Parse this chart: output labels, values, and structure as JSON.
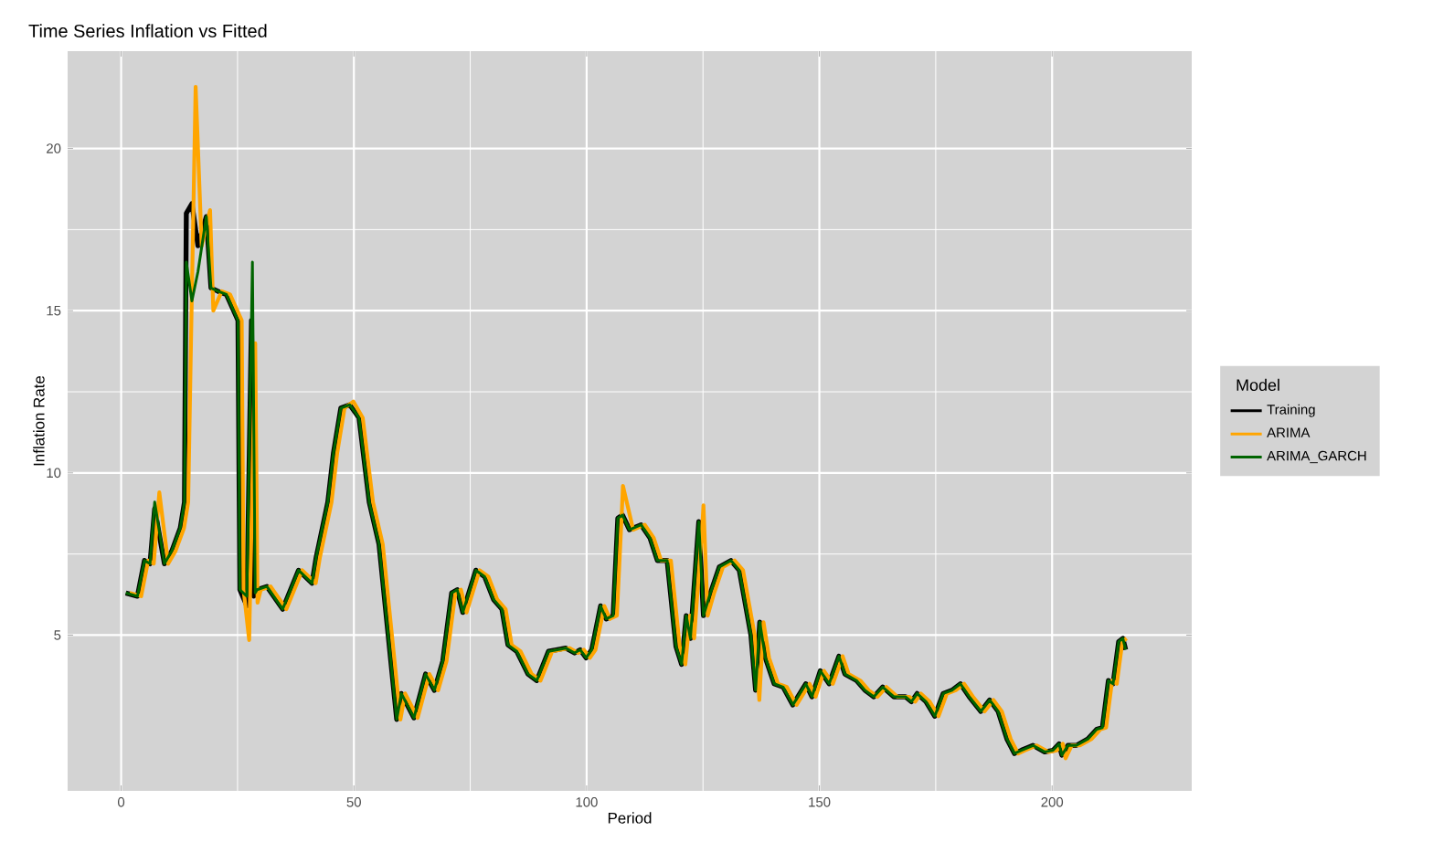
{
  "chart_data": {
    "type": "line",
    "title": "Time Series Inflation vs Fitted",
    "xlabel": "Period",
    "ylabel": "Inflation Rate",
    "legend_title": "Model",
    "legend": "right",
    "grid": true,
    "line_style": "solid",
    "xlim": [
      -11.5,
      230
    ],
    "ylim": [
      0.2,
      23
    ],
    "xticks": [
      0,
      50,
      100,
      150,
      200
    ],
    "yticks": [
      5,
      10,
      15,
      20
    ],
    "series": [
      {
        "name": "Training",
        "color": "#000000",
        "x": [
          1,
          3.5,
          5,
          6.2,
          7.2,
          9.3,
          10.9,
          12.7,
          13.6,
          14,
          15.2,
          16.5,
          18.3,
          19.3,
          20.8,
          22.6,
          25.1,
          25.5,
          27,
          28,
          28.5,
          29.2,
          31.3,
          34.7,
          38.1,
          41,
          41.9,
          44.4,
          45.6,
          47.2,
          49.1,
          51.1,
          53.3,
          55.4,
          59.2,
          60.2,
          62.9,
          65.4,
          67.3,
          69.1,
          71,
          72.2,
          73.4,
          76.2,
          78.1,
          80,
          81.8,
          83.1,
          85,
          87.4,
          89.3,
          91.8,
          93.7,
          95.5,
          97.4,
          98.6,
          99.9,
          101.1,
          103,
          104.2,
          105.7,
          106.7,
          107.7,
          109.2,
          111.7,
          113.6,
          115.2,
          117.3,
          119.2,
          120.4,
          121.4,
          122.3,
          124.1,
          125.1,
          126.6,
          128.5,
          131,
          132.8,
          135.3,
          136.3,
          137.2,
          138.4,
          140.3,
          142.2,
          144.3,
          147.1,
          148.4,
          150.2,
          152.1,
          154.2,
          155.5,
          158,
          159.8,
          161.7,
          163.6,
          166,
          168.5,
          169.8,
          171,
          172.9,
          174.8,
          176.6,
          178.5,
          180.3,
          182.2,
          184.7,
          186.6,
          188.4,
          190.3,
          191.9,
          193.4,
          195.9,
          198.4,
          200.2,
          201.5,
          202.1,
          203.4,
          205.2,
          207.7,
          209.6,
          210.8,
          212.1,
          213.1,
          214.3,
          215.2,
          215.8
        ],
        "values": [
          6.3,
          6.2,
          7.3,
          7.2,
          8.9,
          7.2,
          7.6,
          8.3,
          9.1,
          18.0,
          18.3,
          17.0,
          17.9,
          15.7,
          15.6,
          15.5,
          14.7,
          6.4,
          5.9,
          14.7,
          6.2,
          6.4,
          6.5,
          5.8,
          7.0,
          6.6,
          7.4,
          9.1,
          10.6,
          12.0,
          12.1,
          11.7,
          9.1,
          7.8,
          2.4,
          3.2,
          2.45,
          3.8,
          3.3,
          4.2,
          6.3,
          6.4,
          5.7,
          7.0,
          6.8,
          6.1,
          5.8,
          4.7,
          4.5,
          3.8,
          3.6,
          4.5,
          4.55,
          4.6,
          4.45,
          4.55,
          4.3,
          4.55,
          5.9,
          5.5,
          5.6,
          8.6,
          8.7,
          8.25,
          8.4,
          8.0,
          7.3,
          7.3,
          4.65,
          4.1,
          5.6,
          4.9,
          8.5,
          5.6,
          6.3,
          7.1,
          7.3,
          7.0,
          5.0,
          3.3,
          5.4,
          4.3,
          3.5,
          3.4,
          2.85,
          3.5,
          3.1,
          3.9,
          3.5,
          4.35,
          3.8,
          3.6,
          3.3,
          3.1,
          3.4,
          3.1,
          3.1,
          2.95,
          3.2,
          2.95,
          2.5,
          3.2,
          3.3,
          3.5,
          3.1,
          2.65,
          3.0,
          2.65,
          1.8,
          1.35,
          1.45,
          1.6,
          1.4,
          1.45,
          1.65,
          1.3,
          1.6,
          1.6,
          1.8,
          2.1,
          2.15,
          3.6,
          3.5,
          4.8,
          4.9,
          4.55
        ]
      },
      {
        "name": "ARIMA",
        "color": "#ffa500",
        "x": [
          1.8,
          4.3,
          5.8,
          7,
          8.2,
          10.1,
          11.7,
          13.5,
          14.4,
          15,
          16,
          17.3,
          19.1,
          19.8,
          21.6,
          23.4,
          25.9,
          26.3,
          27.5,
          28.8,
          29.3,
          30,
          32.1,
          35.5,
          38.9,
          41.8,
          42.7,
          45.2,
          46.4,
          48,
          49.9,
          51.9,
          54.1,
          56.2,
          60,
          61,
          63.7,
          66.2,
          68.1,
          69.9,
          71.8,
          73,
          74.2,
          77,
          78.9,
          80.8,
          82.6,
          83.9,
          85.8,
          88.2,
          90.1,
          92.6,
          94.5,
          96.3,
          98.2,
          99.4,
          100.7,
          101.9,
          103.8,
          105,
          106.5,
          107.5,
          107.8,
          110,
          112.5,
          114.4,
          116,
          118.1,
          120,
          121.2,
          122.2,
          123.1,
          124.9,
          125.1,
          126,
          127.4,
          129.3,
          131.8,
          133.6,
          136.1,
          137.1,
          138,
          139.2,
          141.1,
          143,
          145.1,
          147.9,
          149.2,
          151,
          152.9,
          155,
          156.3,
          158.8,
          160.6,
          162.5,
          164.4,
          166.8,
          169.3,
          170.6,
          171.8,
          173.7,
          175.6,
          177.4,
          179.3,
          181.1,
          183,
          185.5,
          187.4,
          189.2,
          191.1,
          192.7,
          194.2,
          196.7,
          199.2,
          201,
          202.3,
          202.9,
          204.2,
          206,
          208.5,
          210.4,
          211.6,
          212.9,
          213.9,
          215.1,
          216
        ],
        "values": [
          6.3,
          6.2,
          7.3,
          7.2,
          9.4,
          7.2,
          7.6,
          8.3,
          9.1,
          14.0,
          21.9,
          17.0,
          18.1,
          15.0,
          15.6,
          15.5,
          14.7,
          6.4,
          4.85,
          14.0,
          6.0,
          6.4,
          6.5,
          5.8,
          7.0,
          6.6,
          7.4,
          9.1,
          10.6,
          12.0,
          12.2,
          11.7,
          9.1,
          7.8,
          2.4,
          3.2,
          2.45,
          3.8,
          3.3,
          4.2,
          6.3,
          6.4,
          5.7,
          7.0,
          6.8,
          6.1,
          5.8,
          4.7,
          4.5,
          3.8,
          3.6,
          4.5,
          4.55,
          4.6,
          4.45,
          4.55,
          4.3,
          4.55,
          5.9,
          5.5,
          5.6,
          8.6,
          9.6,
          8.25,
          8.4,
          8.0,
          7.3,
          7.3,
          4.65,
          4.1,
          5.6,
          4.9,
          8.5,
          9.0,
          5.6,
          6.3,
          7.1,
          7.3,
          7.0,
          5.0,
          3.0,
          5.4,
          4.3,
          3.5,
          3.4,
          2.85,
          3.5,
          3.1,
          3.9,
          3.5,
          4.35,
          3.8,
          3.6,
          3.3,
          3.1,
          3.4,
          3.1,
          3.1,
          2.95,
          3.2,
          2.95,
          2.5,
          3.2,
          3.3,
          3.5,
          3.1,
          2.65,
          3.0,
          2.65,
          1.8,
          1.35,
          1.45,
          1.6,
          1.4,
          1.45,
          1.65,
          1.2,
          1.6,
          1.6,
          1.8,
          2.1,
          2.15,
          3.6,
          3.5,
          4.8,
          4.9
        ]
      },
      {
        "name": "ARIMA_GARCH",
        "color": "#006400",
        "x": [
          1,
          3.5,
          5,
          6.2,
          7.2,
          9.3,
          10.9,
          12.7,
          13.6,
          14,
          15.2,
          16.5,
          18.3,
          19.3,
          20.8,
          22.6,
          25.1,
          25.5,
          27,
          28.2,
          28.8,
          29.2,
          31.3,
          34.7,
          38.1,
          41,
          41.9,
          44.4,
          45.6,
          47.2,
          49.1,
          51.1,
          53.3,
          55.4,
          59.2,
          60.2,
          62.9,
          65.4,
          67.3,
          69.1,
          71,
          72.2,
          73.4,
          76.2,
          78.1,
          80,
          81.8,
          83.1,
          85,
          87.4,
          89.3,
          91.8,
          93.7,
          95.5,
          97.4,
          98.6,
          99.9,
          101.1,
          103,
          104.2,
          105.7,
          106.7,
          107.7,
          109.2,
          111.7,
          113.6,
          115.2,
          117.3,
          119.2,
          120.4,
          121.4,
          122.3,
          124.1,
          125.1,
          126.6,
          128.5,
          131,
          132.8,
          135.3,
          136.3,
          137.2,
          138.4,
          140.3,
          142.2,
          144.3,
          147.1,
          148.4,
          150.2,
          152.1,
          154.2,
          155.5,
          158,
          159.8,
          161.7,
          163.6,
          166,
          168.5,
          169.8,
          171,
          172.9,
          174.8,
          176.6,
          178.5,
          180.3,
          182.2,
          184.7,
          186.6,
          188.4,
          190.3,
          191.9,
          193.4,
          195.9,
          198.4,
          200.2,
          201.5,
          202.1,
          203.4,
          205.2,
          207.7,
          209.6,
          210.8,
          212.1,
          213.1,
          214.3,
          215.2,
          215.8
        ],
        "values": [
          6.3,
          6.2,
          7.3,
          7.2,
          9.1,
          7.2,
          7.6,
          8.3,
          9.1,
          16.5,
          15.3,
          16.2,
          17.9,
          15.7,
          15.6,
          15.5,
          14.7,
          6.4,
          6.2,
          16.5,
          6.3,
          6.4,
          6.5,
          5.8,
          7.0,
          6.6,
          7.4,
          9.1,
          10.6,
          12.0,
          12.1,
          11.7,
          9.1,
          7.8,
          2.4,
          3.2,
          2.45,
          3.8,
          3.3,
          4.2,
          6.3,
          6.4,
          5.7,
          7.0,
          6.8,
          6.1,
          5.8,
          4.7,
          4.5,
          3.8,
          3.6,
          4.5,
          4.55,
          4.6,
          4.45,
          4.55,
          4.3,
          4.55,
          5.9,
          5.5,
          5.6,
          8.6,
          8.7,
          8.25,
          8.4,
          8.0,
          7.3,
          7.3,
          4.65,
          4.1,
          5.6,
          4.9,
          8.5,
          5.6,
          6.3,
          7.1,
          7.3,
          7.0,
          5.0,
          3.3,
          5.4,
          4.3,
          3.5,
          3.4,
          2.85,
          3.5,
          3.1,
          3.9,
          3.5,
          4.35,
          3.8,
          3.6,
          3.3,
          3.1,
          3.4,
          3.1,
          3.1,
          2.95,
          3.2,
          2.95,
          2.5,
          3.2,
          3.3,
          3.5,
          3.1,
          2.65,
          3.0,
          2.65,
          1.8,
          1.35,
          1.45,
          1.6,
          1.4,
          1.45,
          1.65,
          1.3,
          1.6,
          1.6,
          1.8,
          2.1,
          2.15,
          3.6,
          3.5,
          4.8,
          4.9,
          4.55
        ]
      }
    ]
  }
}
